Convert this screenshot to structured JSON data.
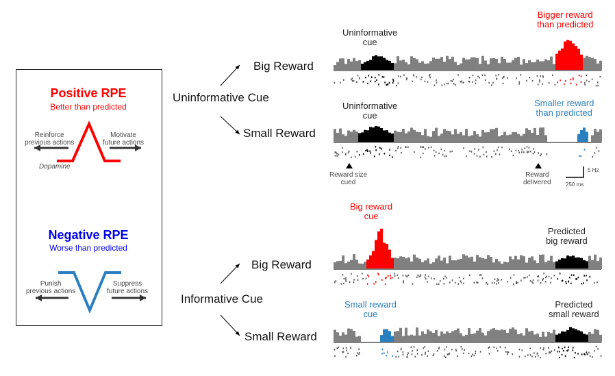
{
  "left_panel": {
    "positive": {
      "title": "Positive RPE",
      "subtitle": "Better than predicted",
      "left_text": "Reinforce\nprevious actions",
      "right_text": "Motivate\nfuture actions",
      "curve_label": "Dopamine",
      "color": "#ff0000"
    },
    "negative": {
      "title": "Negative RPE",
      "subtitle": "Worse than predicted",
      "left_text": "Punish\nprevious actions",
      "right_text": "Suppress\nfuture actions",
      "color": "#0000ee",
      "curve_color": "#2a7fc0"
    }
  },
  "middle": {
    "uninformative_cue": "Uninformative Cue",
    "informative_cue": "Informative Cue",
    "big_reward_1": "Big Reward",
    "small_reward_1": "Small Reward",
    "big_reward_2": "Big Reward",
    "small_reward_2": "Small Reward"
  },
  "panels": {
    "p1": {
      "cue_label": "Uninformative\ncue",
      "reward_label": "Bigger reward\nthan predicted",
      "reward_color": "#ff0000"
    },
    "p2": {
      "cue_label": "Uninformative\ncue",
      "reward_label": "Smaller reward\nthan predicted",
      "reward_color": "#2a7fc0"
    },
    "p3": {
      "cue_label": "Big reward\ncue",
      "reward_label": "Predicted\nbig reward",
      "cue_color": "#ff0000"
    },
    "p4": {
      "cue_label": "Small reward\ncue",
      "reward_label": "Predicted\nsmall reward",
      "cue_color": "#2a7fc0"
    }
  },
  "markers": {
    "cue": "Reward size\ncued",
    "reward": "Reward\ndelivered",
    "scale_y": "5 Hz",
    "scale_x": "250 ms"
  },
  "colors": {
    "baseline": "#808080",
    "cue_black": "#000000",
    "red": "#ff0000",
    "blue": "#2a7fc0"
  }
}
